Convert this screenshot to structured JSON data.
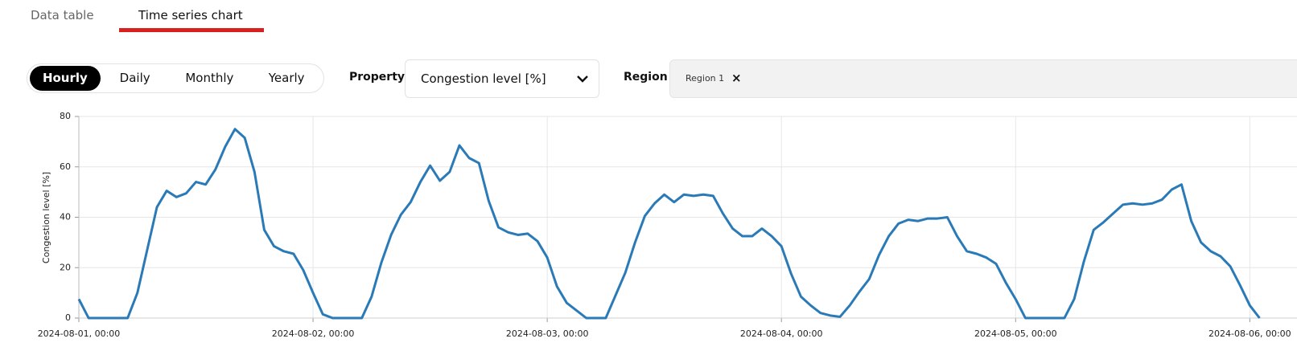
{
  "tabs": [
    "Data table",
    "Time series chart"
  ],
  "active_tab": 1,
  "controls": {
    "periods": [
      "Hourly",
      "Daily",
      "Monthly",
      "Yearly"
    ],
    "selected_period": 0,
    "property_label": "Property",
    "property_value": "Congestion level [%]",
    "region_label": "Region",
    "regions": [
      "Region 1"
    ],
    "remove_icon": "×"
  },
  "chart_data": {
    "type": "line",
    "y_label": "Congestion level [%]",
    "color": "#2a7ab7",
    "x": [
      "2024-08-01, 00:00",
      "2024-08-01, 01:00",
      "2024-08-01, 02:00",
      "2024-08-01, 03:00",
      "2024-08-01, 04:00",
      "2024-08-01, 05:00",
      "2024-08-01, 06:00",
      "2024-08-01, 07:00",
      "2024-08-01, 08:00",
      "2024-08-01, 09:00",
      "2024-08-01, 10:00",
      "2024-08-01, 11:00",
      "2024-08-01, 12:00",
      "2024-08-01, 13:00",
      "2024-08-01, 14:00",
      "2024-08-01, 15:00",
      "2024-08-01, 16:00",
      "2024-08-01, 17:00",
      "2024-08-01, 18:00",
      "2024-08-01, 19:00",
      "2024-08-01, 20:00",
      "2024-08-01, 21:00",
      "2024-08-01, 22:00",
      "2024-08-01, 23:00",
      "2024-08-02, 00:00",
      "2024-08-02, 01:00",
      "2024-08-02, 02:00",
      "2024-08-02, 03:00",
      "2024-08-02, 04:00",
      "2024-08-02, 05:00",
      "2024-08-02, 06:00",
      "2024-08-02, 07:00",
      "2024-08-02, 08:00",
      "2024-08-02, 09:00",
      "2024-08-02, 10:00",
      "2024-08-02, 11:00",
      "2024-08-02, 12:00",
      "2024-08-02, 13:00",
      "2024-08-02, 14:00",
      "2024-08-02, 15:00",
      "2024-08-02, 16:00",
      "2024-08-02, 17:00",
      "2024-08-02, 18:00",
      "2024-08-02, 19:00",
      "2024-08-02, 20:00",
      "2024-08-02, 21:00",
      "2024-08-02, 22:00",
      "2024-08-02, 23:00",
      "2024-08-03, 00:00",
      "2024-08-03, 01:00",
      "2024-08-03, 02:00",
      "2024-08-03, 03:00",
      "2024-08-03, 04:00",
      "2024-08-03, 05:00",
      "2024-08-03, 06:00",
      "2024-08-03, 07:00",
      "2024-08-03, 08:00",
      "2024-08-03, 09:00",
      "2024-08-03, 10:00",
      "2024-08-03, 11:00",
      "2024-08-03, 12:00",
      "2024-08-03, 13:00",
      "2024-08-03, 14:00",
      "2024-08-03, 15:00",
      "2024-08-03, 16:00",
      "2024-08-03, 17:00",
      "2024-08-03, 18:00",
      "2024-08-03, 19:00",
      "2024-08-03, 20:00",
      "2024-08-03, 21:00",
      "2024-08-03, 22:00",
      "2024-08-03, 23:00",
      "2024-08-04, 00:00",
      "2024-08-04, 01:00",
      "2024-08-04, 02:00",
      "2024-08-04, 03:00",
      "2024-08-04, 04:00",
      "2024-08-04, 05:00",
      "2024-08-04, 06:00",
      "2024-08-04, 07:00",
      "2024-08-04, 08:00",
      "2024-08-04, 09:00",
      "2024-08-04, 10:00",
      "2024-08-04, 11:00",
      "2024-08-04, 12:00",
      "2024-08-04, 13:00",
      "2024-08-04, 14:00",
      "2024-08-04, 15:00",
      "2024-08-04, 16:00",
      "2024-08-04, 17:00",
      "2024-08-04, 18:00",
      "2024-08-04, 19:00",
      "2024-08-04, 20:00",
      "2024-08-04, 21:00",
      "2024-08-04, 22:00",
      "2024-08-04, 23:00",
      "2024-08-05, 00:00",
      "2024-08-05, 01:00",
      "2024-08-05, 02:00",
      "2024-08-05, 03:00",
      "2024-08-05, 04:00",
      "2024-08-05, 05:00",
      "2024-08-05, 06:00",
      "2024-08-05, 07:00",
      "2024-08-05, 08:00",
      "2024-08-05, 09:00",
      "2024-08-05, 10:00",
      "2024-08-05, 11:00",
      "2024-08-05, 12:00",
      "2024-08-05, 13:00",
      "2024-08-05, 14:00",
      "2024-08-05, 15:00",
      "2024-08-05, 16:00",
      "2024-08-05, 17:00",
      "2024-08-05, 18:00",
      "2024-08-05, 19:00",
      "2024-08-05, 20:00",
      "2024-08-05, 21:00",
      "2024-08-05, 22:00",
      "2024-08-05, 23:00",
      "2024-08-06, 00:00",
      "2024-08-06, 01:00"
    ],
    "values": [
      7.5,
      0,
      0,
      0,
      0,
      0,
      10,
      27,
      44,
      50.5,
      48,
      49.5,
      54,
      53,
      59,
      68,
      75,
      71.5,
      58,
      35,
      28.5,
      26.5,
      25.5,
      19,
      10,
      1.5,
      0,
      0,
      0,
      0,
      8.5,
      22,
      33,
      41,
      46,
      54,
      60.5,
      54.5,
      58,
      68.5,
      63.5,
      61.5,
      46.5,
      36,
      34,
      33,
      33.5,
      30.5,
      24,
      12.5,
      6,
      3,
      0,
      0,
      0,
      9,
      18,
      30,
      40.5,
      45.5,
      49,
      46,
      49,
      48.5,
      49,
      48.5,
      41.5,
      35.5,
      32.5,
      32.5,
      35.5,
      32.5,
      28.5,
      17.5,
      8.5,
      5,
      2,
      1,
      0.5,
      5,
      10.5,
      15.5,
      25,
      32.5,
      37.5,
      39,
      38.5,
      39.5,
      39.5,
      40,
      32.5,
      26.5,
      25.5,
      24,
      21.5,
      14,
      7.5,
      0,
      0,
      0,
      0,
      0,
      7.5,
      22.5,
      35,
      38,
      41.5,
      45,
      45.5,
      45,
      45.5,
      47,
      51,
      53,
      38.5,
      30,
      26.5,
      24.5,
      20.5,
      13,
      5,
      0
    ],
    "xlim": [
      "2024-08-01, 00:00",
      "2024-08-06, 05:00"
    ],
    "xticks": [
      "2024-08-01, 00:00",
      "2024-08-02, 00:00",
      "2024-08-03, 00:00",
      "2024-08-04, 00:00",
      "2024-08-05, 00:00",
      "2024-08-06, 00:00"
    ],
    "ylim": [
      0,
      80
    ],
    "yticks": [
      0,
      20,
      40,
      60,
      80
    ],
    "grid": true
  }
}
